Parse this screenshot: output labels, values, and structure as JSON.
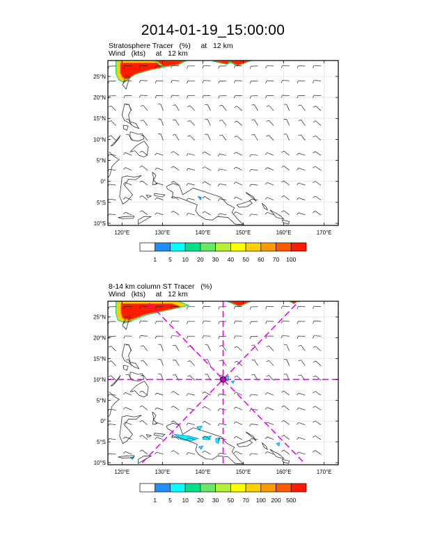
{
  "page_title": "2014-01-19_15:00:00",
  "panels": [
    {
      "title_line1": "Stratosphere Tracer   (%)     at   12 km",
      "title_line2": "Wind   (kts)     at   12 km",
      "colorbar": {
        "labels": [
          "1",
          "5",
          "10",
          "20",
          "30",
          "40",
          "50",
          "60",
          "70",
          "100"
        ],
        "colors": [
          "#ffffff",
          "#1e90ff",
          "#00ffff",
          "#00e18c",
          "#66e866",
          "#b5f035",
          "#ffff00",
          "#ffd000",
          "#ff9900",
          "#ff5a00",
          "#ff1a00"
        ]
      },
      "has_crosshair": false
    },
    {
      "title_line1": "8-14 km column ST Tracer   (%)",
      "title_line2": "Wind   (kts)     at   12 km",
      "colorbar": {
        "labels": [
          "1",
          "5",
          "10",
          "20",
          "30",
          "50",
          "70",
          "100",
          "200",
          "500"
        ],
        "colors": [
          "#ffffff",
          "#1e90ff",
          "#00ffff",
          "#00e18c",
          "#66e866",
          "#b5f035",
          "#ffff00",
          "#ffd000",
          "#ff9900",
          "#ff5a00",
          "#ff1a00"
        ]
      },
      "has_crosshair": true
    }
  ],
  "map": {
    "lon_ticks": [
      "120°E",
      "130°E",
      "140°E",
      "150°E",
      "160°E",
      "170°E"
    ],
    "lat_ticks": [
      "25°N",
      "20°N",
      "15°N",
      "10°N",
      "5°N",
      "0°",
      "5°S",
      "10°S"
    ],
    "lon_range": [
      116.5,
      173.5
    ],
    "lat_range": [
      -10.5,
      28.8
    ],
    "crosshair_center": {
      "lon": 145,
      "lat": 10
    },
    "crosshair_color": "#ee00ee",
    "coastline_color": "#333333",
    "grid_color": "#dddddd"
  }
}
